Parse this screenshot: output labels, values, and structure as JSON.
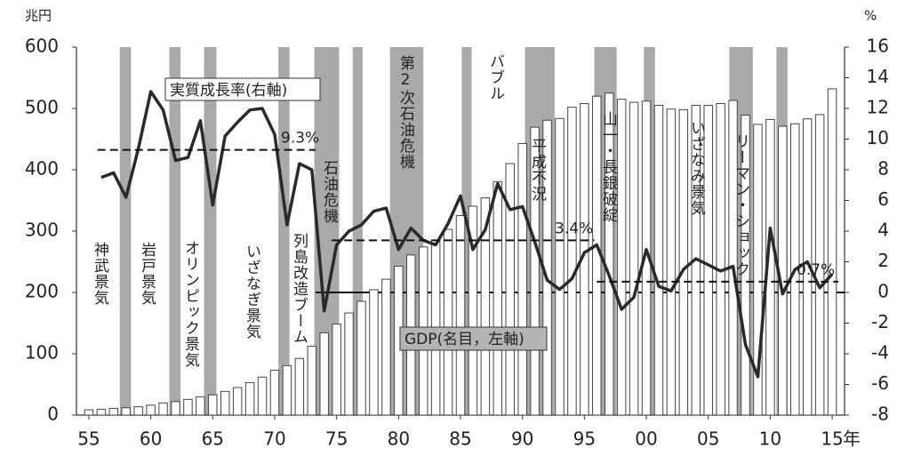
{
  "chart_data": {
    "type": "bar-line",
    "y_unit": "兆円",
    "y2_unit": "%",
    "x_unit": "年",
    "x": [
      1955,
      1956,
      1957,
      1958,
      1959,
      1960,
      1961,
      1962,
      1963,
      1964,
      1965,
      1966,
      1967,
      1968,
      1969,
      1970,
      1971,
      1972,
      1973,
      1974,
      1975,
      1976,
      1977,
      1978,
      1979,
      1980,
      1981,
      1982,
      1983,
      1984,
      1985,
      1986,
      1987,
      1988,
      1989,
      1990,
      1991,
      1992,
      1993,
      1994,
      1995,
      1996,
      1997,
      1998,
      1999,
      2000,
      2001,
      2002,
      2003,
      2004,
      2005,
      2006,
      2007,
      2008,
      2009,
      2010,
      2011,
      2012,
      2013,
      2014,
      2015
    ],
    "xlim": [
      1954,
      2016
    ],
    "xticks": [
      {
        "value": 1955,
        "label": "55"
      },
      {
        "value": 1960,
        "label": "60"
      },
      {
        "value": 1965,
        "label": "65"
      },
      {
        "value": 1970,
        "label": "70"
      },
      {
        "value": 1975,
        "label": "75"
      },
      {
        "value": 1980,
        "label": "80"
      },
      {
        "value": 1985,
        "label": "85"
      },
      {
        "value": 1990,
        "label": "90"
      },
      {
        "value": 1995,
        "label": "95"
      },
      {
        "value": 2000,
        "label": "00"
      },
      {
        "value": 2005,
        "label": "05"
      },
      {
        "value": 2010,
        "label": "10"
      },
      {
        "value": 2015,
        "label": "15"
      }
    ],
    "ylim": [
      0,
      600
    ],
    "yticks": [
      0,
      100,
      200,
      300,
      400,
      500,
      600
    ],
    "y2lim": [
      -8,
      16
    ],
    "y2ticks": [
      -8,
      -6,
      -4,
      -2,
      0,
      2,
      4,
      6,
      8,
      10,
      12,
      14,
      16
    ],
    "series": [
      {
        "type": "bar",
        "color": "#ffffff",
        "values": [
          8.6,
          9.6,
          11.0,
          11.9,
          13.6,
          16.2,
          19.9,
          22.0,
          25.6,
          30.0,
          33.0,
          38.7,
          45.0,
          53.0,
          62.0,
          73.3,
          80.7,
          92.4,
          112.5,
          134.2,
          148.3,
          166.6,
          185.6,
          204.4,
          221.5,
          242.8,
          261.1,
          274.1,
          285.1,
          302.9,
          325.4,
          340.6,
          354.2,
          380.7,
          410.1,
          442.8,
          469.4,
          480.8,
          483.7,
          502,
          508,
          520,
          525,
          515,
          510,
          512,
          505,
          499,
          498,
          505,
          505,
          508,
          513,
          489,
          474,
          482,
          471,
          475,
          483,
          490,
          532
        ]
      },
      {
        "type": "line",
        "axis": "y2",
        "color": "#2a2a2a",
        "values": [
          null,
          7.5,
          7.8,
          6.2,
          9.4,
          13.1,
          11.9,
          8.6,
          8.8,
          11.2,
          5.7,
          10.2,
          11.1,
          11.9,
          12.0,
          10.3,
          4.4,
          8.4,
          8.0,
          -1.2,
          3.1,
          4.0,
          4.4,
          5.3,
          5.5,
          2.8,
          4.2,
          3.4,
          3.1,
          4.5,
          6.3,
          2.8,
          4.1,
          7.1,
          5.4,
          5.6,
          3.3,
          0.8,
          0.2,
          0.9,
          2.6,
          3.1,
          1.1,
          -1.1,
          -0.3,
          2.8,
          0.4,
          0.1,
          1.5,
          2.2,
          1.8,
          1.4,
          1.7,
          -3.4,
          -5.5,
          4.2,
          -0.1,
          1.5,
          2.0,
          0.3,
          1.2
        ]
      }
    ],
    "shaded_periods": [
      [
        1957.5,
        1958.4
      ],
      [
        1961.5,
        1962.4
      ],
      [
        1964.3,
        1965.3
      ],
      [
        1970.3,
        1971.2
      ],
      [
        1973.2,
        1975.2
      ],
      [
        1976.3,
        1977.1
      ],
      [
        1979.3,
        1982.0
      ],
      [
        1985.1,
        1985.9
      ],
      [
        1990.2,
        1992.6
      ],
      [
        1995.8,
        1997.6
      ],
      [
        1999.8,
        2000.7
      ],
      [
        2006.7,
        2008.6
      ],
      [
        2010.5,
        2011.4
      ]
    ],
    "shade_color": "#a9a9a9",
    "zero_line": {
      "value": 0,
      "from": 1973.3,
      "to": 2016
    },
    "averages": [
      {
        "value": 9.3,
        "label": "9.3%",
        "from": 1955.7,
        "to": 1973.3
      },
      {
        "value": 3.4,
        "label": "3.4%",
        "from": 1974.6,
        "to": 1995.8
      },
      {
        "value": 0.7,
        "label": "0.7%",
        "from": 1996.0,
        "to": 2015.5
      }
    ],
    "series_labels": [
      "実質成長率(右軸)",
      "GDP(名目，左軸)"
    ],
    "annotations": [
      "神武景気",
      "岩戸景気",
      "オリンピック景気",
      "いざなぎ景気",
      "列島改造ブーム",
      "石油危機",
      "第2次石油危機",
      "バブル",
      "平成不況",
      "山一・長銀破綻",
      "いざなみ景気",
      "リーマン・ショック"
    ]
  }
}
